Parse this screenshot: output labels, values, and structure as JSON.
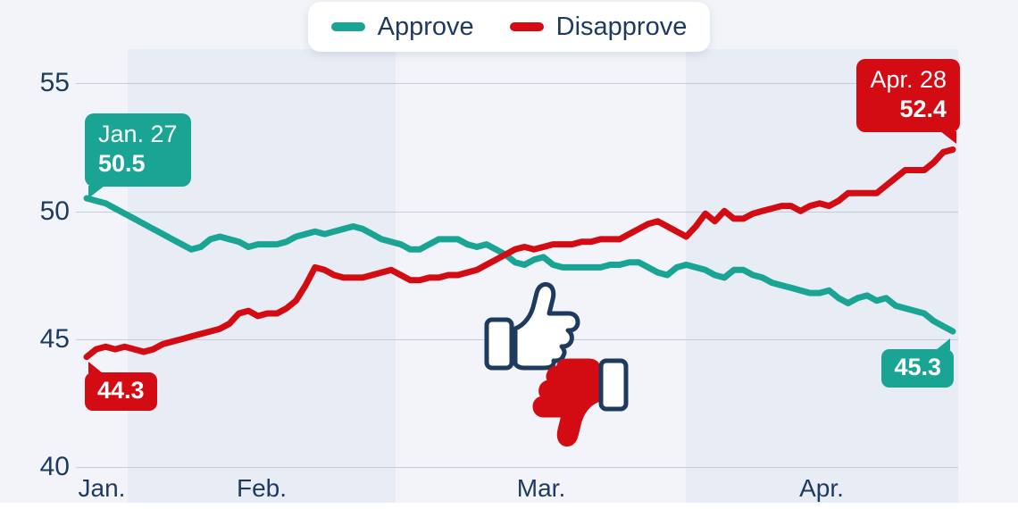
{
  "colors": {
    "approve": "#1aa493",
    "disapprove": "#d30b13",
    "text": "#1e3a5f",
    "background": "#f2f4f9",
    "month_band": "#e8ecf4",
    "gridline": "#c6ccd8",
    "legend_background": "#ffffff",
    "callout_text": "#ffffff"
  },
  "legend": {
    "items": [
      {
        "label": "Approve",
        "color": "#1aa493"
      },
      {
        "label": "Disapprove",
        "color": "#d30b13"
      }
    ]
  },
  "y_axis": {
    "ticks": [
      "55",
      "50",
      "45",
      "40"
    ]
  },
  "x_axis": {
    "labels": [
      "Jan.",
      "Feb.",
      "Mar.",
      "Apr."
    ]
  },
  "annotations": {
    "approve_start": {
      "date": "Jan. 27",
      "value": "50.5"
    },
    "disapprove_start": {
      "value": "44.3"
    },
    "approve_end": {
      "value": "45.3"
    },
    "disapprove_end": {
      "date": "Apr. 28",
      "value": "52.4"
    }
  },
  "watermark_icons": [
    "thumbs-up-icon",
    "thumbs-down-icon"
  ],
  "chart_data": {
    "type": "line",
    "title": "",
    "x_unit": "day",
    "x_start": "Jan. 27",
    "x_end": "Apr. 28",
    "x_month_labels": [
      "Jan.",
      "Feb.",
      "Mar.",
      "Apr."
    ],
    "ylim": [
      40,
      55
    ],
    "yticks": [
      55,
      50,
      45,
      40
    ],
    "grid": true,
    "legend_position": "top-center",
    "series": [
      {
        "name": "Approve",
        "color": "#1aa493",
        "start_label": {
          "date": "Jan. 27",
          "value": 50.5
        },
        "end_label": {
          "value": 45.3
        },
        "values": [
          50.5,
          50.4,
          50.3,
          50.1,
          49.9,
          49.7,
          49.5,
          49.3,
          49.1,
          48.9,
          48.7,
          48.5,
          48.6,
          48.9,
          49.0,
          48.9,
          48.8,
          48.6,
          48.7,
          48.7,
          48.7,
          48.8,
          49.0,
          49.1,
          49.2,
          49.1,
          49.2,
          49.3,
          49.4,
          49.3,
          49.1,
          48.9,
          48.8,
          48.7,
          48.5,
          48.5,
          48.7,
          48.9,
          48.9,
          48.9,
          48.7,
          48.6,
          48.7,
          48.5,
          48.3,
          48.0,
          47.9,
          48.1,
          48.2,
          47.9,
          47.8,
          47.8,
          47.8,
          47.8,
          47.8,
          47.9,
          47.9,
          48.0,
          48.0,
          47.8,
          47.6,
          47.5,
          47.8,
          47.9,
          47.8,
          47.7,
          47.5,
          47.4,
          47.7,
          47.7,
          47.5,
          47.4,
          47.2,
          47.1,
          47.0,
          46.9,
          46.8,
          46.8,
          46.9,
          46.6,
          46.4,
          46.6,
          46.7,
          46.5,
          46.6,
          46.3,
          46.2,
          46.1,
          46.0,
          45.7,
          45.5,
          45.3
        ]
      },
      {
        "name": "Disapprove",
        "color": "#d30b13",
        "start_label": {
          "value": 44.3
        },
        "end_label": {
          "date": "Apr. 28",
          "value": 52.4
        },
        "values": [
          44.3,
          44.6,
          44.7,
          44.6,
          44.7,
          44.6,
          44.5,
          44.6,
          44.8,
          44.9,
          45.0,
          45.1,
          45.2,
          45.3,
          45.4,
          45.6,
          46.0,
          46.1,
          45.9,
          46.0,
          46.0,
          46.2,
          46.5,
          47.1,
          47.8,
          47.7,
          47.5,
          47.4,
          47.4,
          47.4,
          47.5,
          47.6,
          47.7,
          47.5,
          47.3,
          47.3,
          47.4,
          47.4,
          47.5,
          47.5,
          47.6,
          47.7,
          47.9,
          48.1,
          48.3,
          48.5,
          48.6,
          48.5,
          48.6,
          48.7,
          48.7,
          48.7,
          48.8,
          48.8,
          48.9,
          48.9,
          48.9,
          49.1,
          49.3,
          49.5,
          49.6,
          49.4,
          49.2,
          49.0,
          49.4,
          49.9,
          49.6,
          50.0,
          49.7,
          49.7,
          49.9,
          50.0,
          50.1,
          50.2,
          50.2,
          50.0,
          50.2,
          50.3,
          50.2,
          50.4,
          50.7,
          50.7,
          50.7,
          50.7,
          51.0,
          51.3,
          51.6,
          51.6,
          51.6,
          51.9,
          52.3,
          52.4
        ]
      }
    ]
  }
}
